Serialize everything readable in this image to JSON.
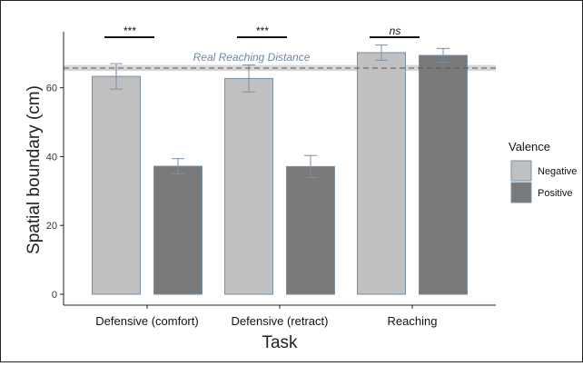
{
  "chart_data": {
    "type": "bar",
    "title": "",
    "xlabel": "Task",
    "ylabel": "Spatial boundary (cm)",
    "ylim": [
      0,
      76
    ],
    "yticks": [
      0,
      20,
      40,
      60
    ],
    "grid": false,
    "categories": [
      "Defensive (comfort)",
      "Defensive (retract)",
      "Reaching"
    ],
    "series": [
      {
        "name": "Negative",
        "color": "#c0c0c0",
        "values": [
          63.3,
          62.7,
          70.2
        ],
        "errors": [
          3.7,
          3.9,
          2.2
        ]
      },
      {
        "name": "Positive",
        "color": "#7a7a7a",
        "values": [
          37.2,
          37.1,
          69.4
        ],
        "errors": [
          2.2,
          3.2,
          2.0
        ]
      }
    ],
    "significance": [
      "***",
      "***",
      "ns"
    ],
    "reference_line": {
      "label": "Real Reaching Distance",
      "value": 65.7,
      "band": [
        64.9,
        66.6
      ]
    },
    "legend": {
      "title": "Valence",
      "position": "right"
    },
    "bar_edge_color": "#7a8fa8"
  }
}
